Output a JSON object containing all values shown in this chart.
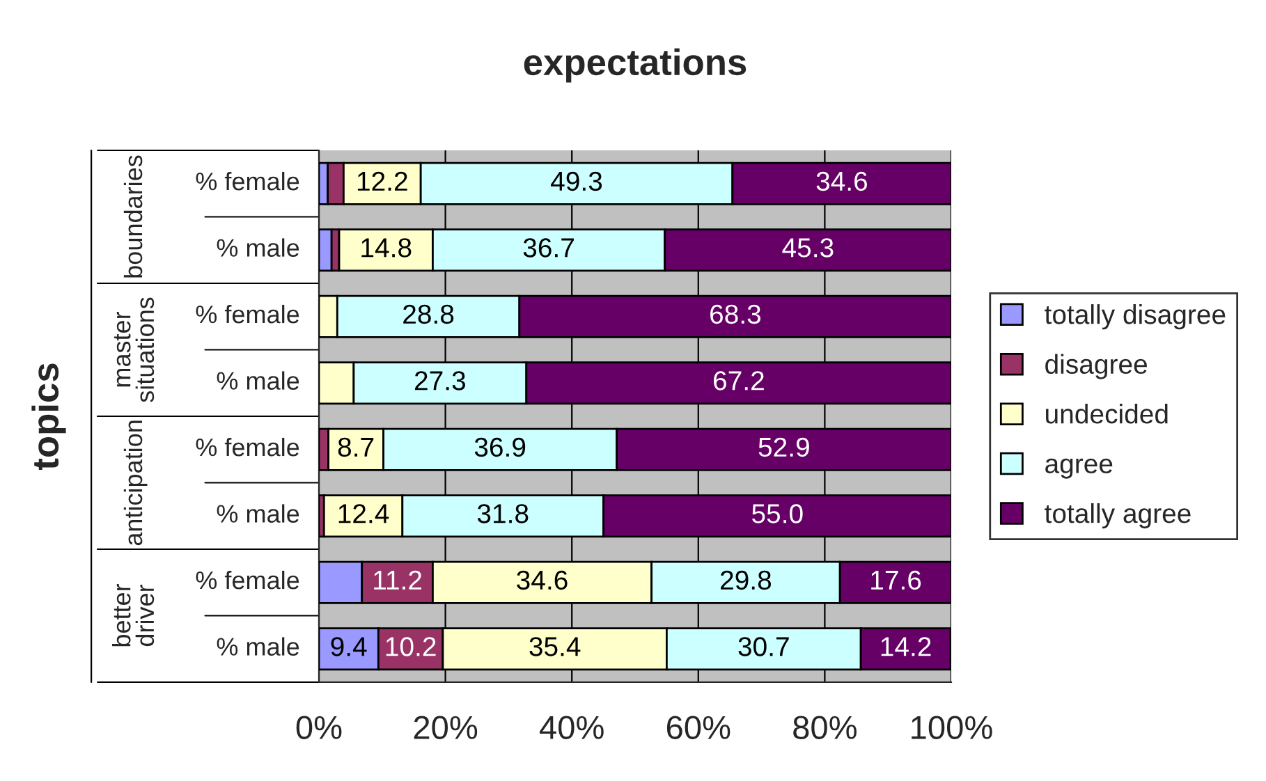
{
  "chart_data": {
    "type": "bar",
    "orientation": "horizontal",
    "stacked": true,
    "title": "expectations",
    "ylabel": "topics",
    "categories": [
      "% female",
      "% male",
      "% female",
      "% male",
      "% female",
      "% male",
      "% female",
      "% male"
    ],
    "annotations": [
      "boundaries",
      "master\nsituations",
      "anticipation",
      "better\ndriver"
    ],
    "series": [
      {
        "name": "totally disagree",
        "color": "#9999ff",
        "values": [
          1.4,
          2.0,
          0,
          0,
          0,
          0,
          6.8,
          9.4
        ],
        "value_labels": [
          null,
          null,
          null,
          null,
          null,
          null,
          null,
          "9.4"
        ]
      },
      {
        "name": "disagree",
        "color": "#993366",
        "values": [
          2.5,
          1.2,
          0,
          0,
          1.5,
          0.8,
          11.2,
          10.2
        ],
        "value_labels": [
          null,
          null,
          null,
          null,
          null,
          null,
          "11.2",
          "10.2"
        ]
      },
      {
        "name": "undecided",
        "color": "#ffffcc",
        "values": [
          12.2,
          14.8,
          2.9,
          5.5,
          8.7,
          12.4,
          34.6,
          35.4
        ],
        "value_labels": [
          "12.2",
          "14.8",
          null,
          null,
          "8.7",
          "12.4",
          "34.6",
          "35.4"
        ]
      },
      {
        "name": "agree",
        "color": "#ccffff",
        "values": [
          49.3,
          36.7,
          28.8,
          27.3,
          36.9,
          31.8,
          29.8,
          30.7
        ],
        "value_labels": [
          "49.3",
          "36.7",
          "28.8",
          "27.3",
          "36.9",
          "31.8",
          "29.8",
          "30.7"
        ]
      },
      {
        "name": "totally agree",
        "color": "#660066",
        "values": [
          34.6,
          45.3,
          68.3,
          67.2,
          52.9,
          55.0,
          17.6,
          14.2
        ],
        "value_labels": [
          "34.6",
          "45.3",
          "68.3",
          "67.2",
          "52.9",
          "55.0",
          "17.6",
          "14.2"
        ]
      }
    ],
    "xlim": [
      0,
      100
    ],
    "xticks": [
      {
        "value": 0,
        "label": "0%"
      },
      {
        "value": 20,
        "label": "20%"
      },
      {
        "value": 40,
        "label": "40%"
      },
      {
        "value": 60,
        "label": "60%"
      },
      {
        "value": 80,
        "label": "80%"
      },
      {
        "value": 100,
        "label": "100%"
      }
    ],
    "grid": "x",
    "legend": "right"
  }
}
